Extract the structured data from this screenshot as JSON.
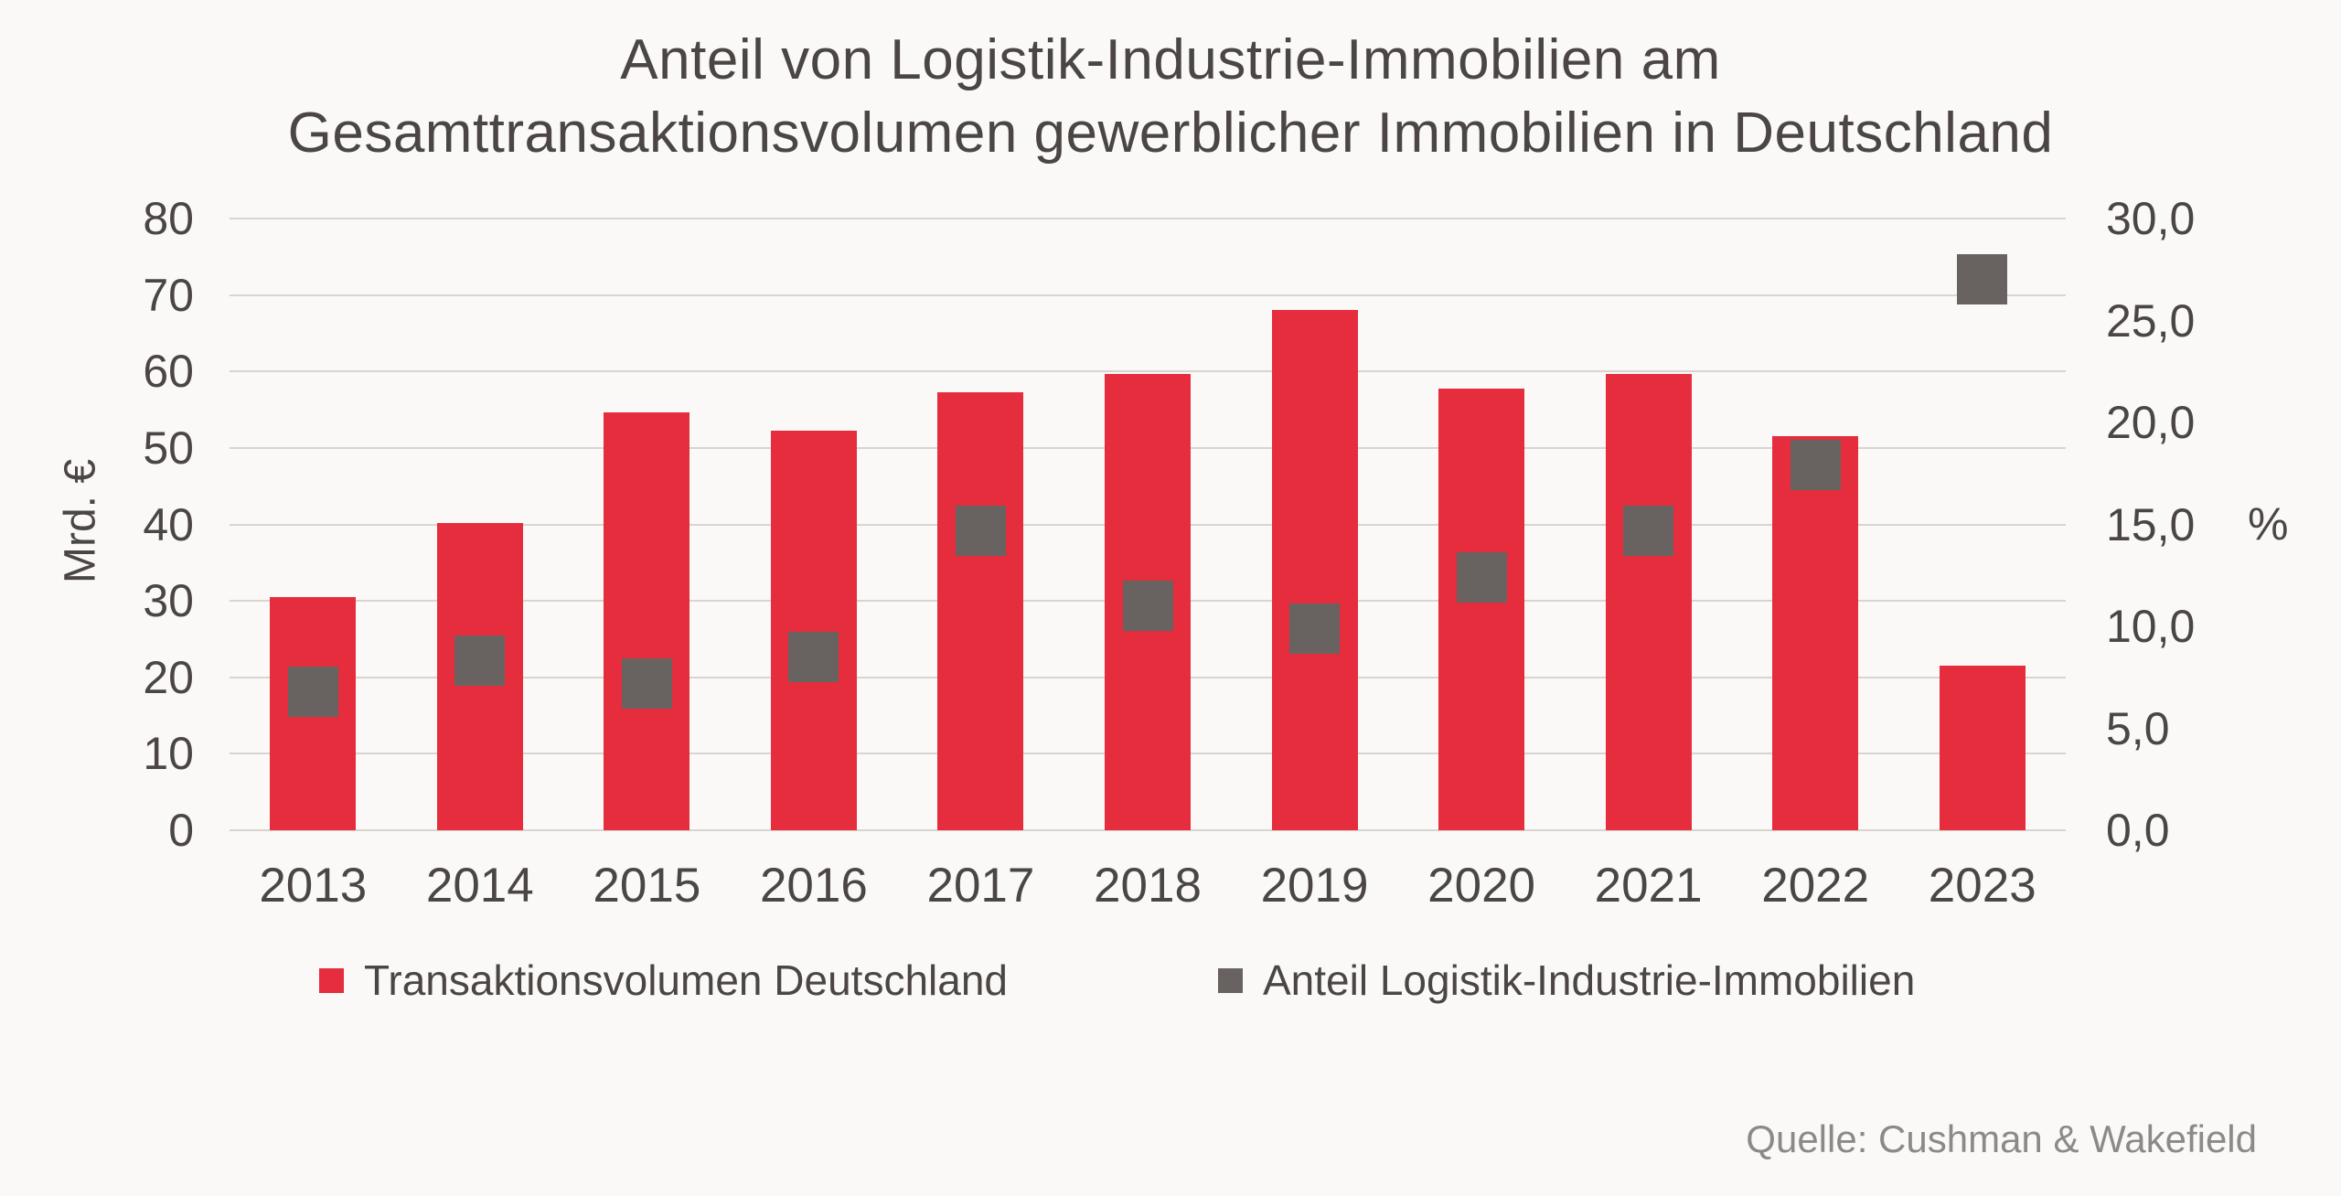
{
  "title": {
    "line1": "Anteil von Logistik-Industrie-Immobilien am",
    "line2": "Gesamttransaktionsvolumen gewerblicher Immobilien in Deutschland"
  },
  "source": "Quelle: Cushman & Wakefield",
  "colors": {
    "bar_red": "#e52d3e",
    "marker_gray": "#686361",
    "gridline": "#d9d4cf",
    "text": "#4b4643",
    "source_text": "#8c8a88",
    "background": "#fbf9f7"
  },
  "chart_data": {
    "type": "bar",
    "subtype": "combo-bar-with-square-markers",
    "categories": [
      "2013",
      "2014",
      "2015",
      "2016",
      "2017",
      "2018",
      "2019",
      "2020",
      "2021",
      "2022",
      "2023"
    ],
    "series": [
      {
        "name": "Transaktionsvolumen Deutschland",
        "type": "bar",
        "axis": "left",
        "color": "#e52d3e",
        "values": [
          30.5,
          40.2,
          54.7,
          52.3,
          57.3,
          59.7,
          68.0,
          57.8,
          59.7,
          51.5,
          21.5
        ]
      },
      {
        "name": "Anteil Logistik-Industrie-Immobilien",
        "type": "square-marker",
        "axis": "right",
        "color": "#686361",
        "values": [
          6.8,
          8.3,
          7.2,
          8.5,
          14.7,
          11.0,
          9.9,
          12.4,
          14.7,
          17.9,
          27.0
        ]
      }
    ],
    "left_axis": {
      "label": "Mrd. €",
      "min": 0,
      "max": 80,
      "step": 10,
      "tick_labels": [
        "80",
        "70",
        "60",
        "50",
        "40",
        "30",
        "20",
        "10",
        "0"
      ]
    },
    "right_axis": {
      "label": "%",
      "min": 0,
      "max": 30,
      "step": 5,
      "tick_labels": [
        "30,0",
        "25,0",
        "20,0",
        "15,0",
        "10,0",
        "5,0",
        "0,0"
      ]
    },
    "grid": true,
    "legend_position": "bottom"
  }
}
